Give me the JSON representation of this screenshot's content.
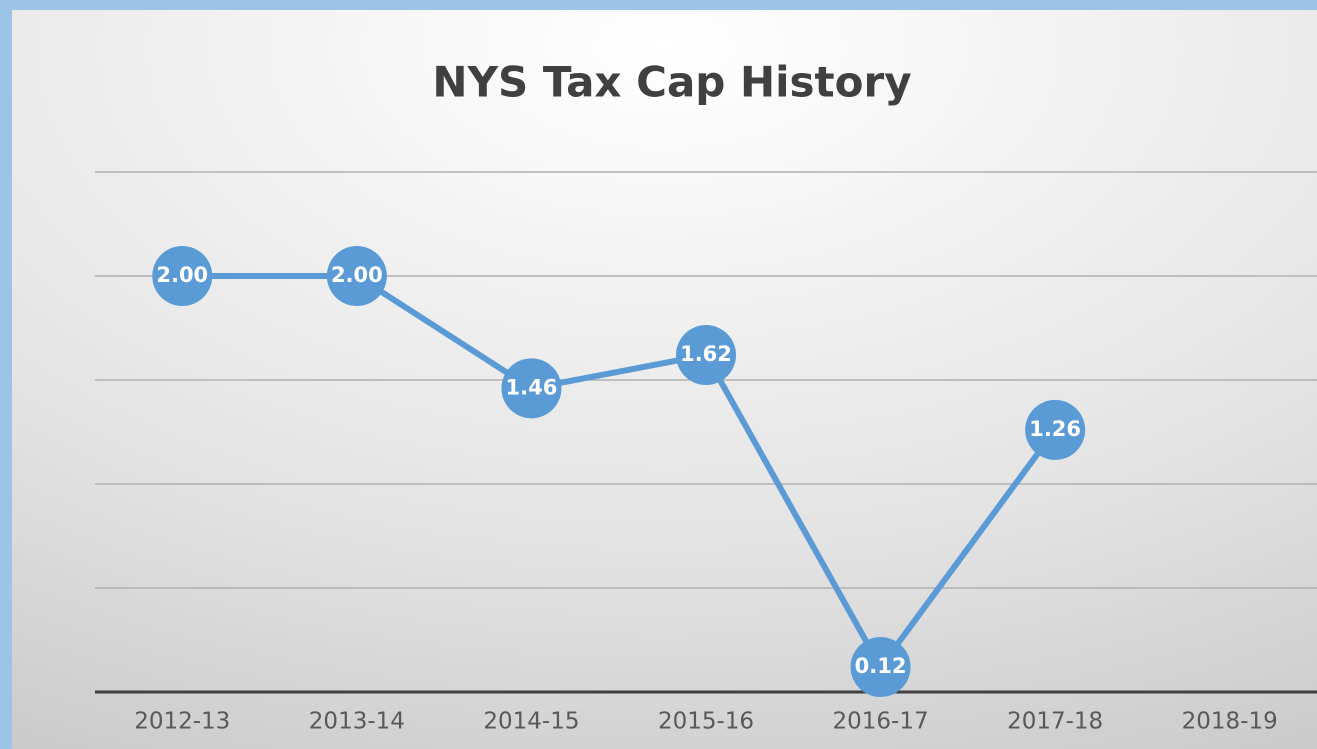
{
  "chart_data": {
    "type": "line",
    "title": "NYS Tax Cap History",
    "categories": [
      "2012-13",
      "2013-14",
      "2014-15",
      "2015-16",
      "2016-17",
      "2017-18",
      "2018-19"
    ],
    "series": [
      {
        "name": null,
        "color": "#5b9bd5",
        "values": [
          2,
          2,
          1.46,
          1.62,
          0.12,
          1.26,
          null
        ],
        "value_labels": [
          "2.00",
          "2.00",
          "1.46",
          "1.62",
          "0.12",
          "1.26",
          null
        ]
      }
    ],
    "ylim": [
      0,
      2.5
    ],
    "yticks": [
      0,
      0.5,
      1,
      1.5,
      2,
      2.5
    ],
    "grid": true
  }
}
